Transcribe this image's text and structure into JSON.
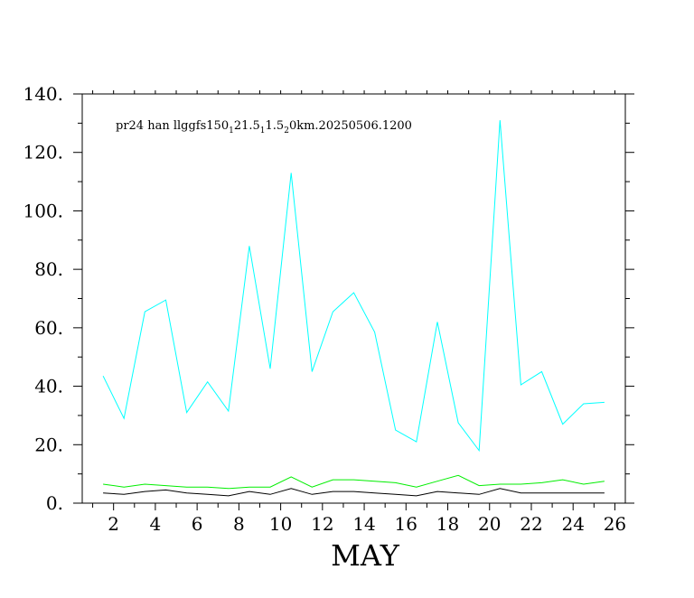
{
  "chart_data": {
    "type": "line",
    "title": "pr24  han  llggfs150",
    "title_parts": [
      {
        "text": "pr24  han  llggfs150",
        "sub": false
      },
      {
        "text": "1",
        "sub": true
      },
      {
        "text": "21.5",
        "sub": false
      },
      {
        "text": "1",
        "sub": true
      },
      {
        "text": "1.5",
        "sub": false
      },
      {
        "text": "2",
        "sub": true
      },
      {
        "text": "0km.20250506.1200",
        "sub": false
      }
    ],
    "xlabel": "MAY",
    "ylabel": "",
    "xlim": [
      0.5,
      26.5
    ],
    "ylim": [
      0,
      140
    ],
    "x_ticks": [
      2,
      4,
      6,
      8,
      10,
      12,
      14,
      16,
      18,
      20,
      22,
      24,
      26
    ],
    "x_tick_labels": [
      "2",
      "4",
      "6",
      "8",
      "10",
      "12",
      "14",
      "16",
      "18",
      "20",
      "22",
      "24",
      "26"
    ],
    "y_ticks": [
      0,
      20,
      40,
      60,
      80,
      100,
      120,
      140
    ],
    "y_tick_labels": [
      "0.",
      "20.",
      "40.",
      "60.",
      "80.",
      "100.",
      "120.",
      "140."
    ],
    "grid": false,
    "x": [
      1.5,
      2.5,
      3.5,
      4.5,
      5.5,
      6.5,
      7.5,
      8.5,
      9.5,
      10.5,
      11.5,
      12.5,
      13.5,
      14.5,
      15.5,
      16.5,
      17.5,
      18.5,
      19.5,
      20.5,
      21.5,
      22.5,
      23.5,
      24.5,
      25.5
    ],
    "series": [
      {
        "color": "#00ffff",
        "values": [
          43.5,
          29,
          65.5,
          69.5,
          31,
          41.5,
          31.5,
          88,
          46,
          113,
          45,
          65.5,
          72,
          58.5,
          25,
          21,
          62,
          27.5,
          18,
          131,
          40.5,
          45,
          27,
          34,
          34.5
        ]
      },
      {
        "color": "#00ee00",
        "values": [
          6.5,
          5.5,
          6.5,
          6,
          5.5,
          5.5,
          5,
          5.5,
          5.5,
          9,
          5.5,
          8,
          8,
          7.5,
          7,
          5.5,
          7.5,
          9.5,
          6,
          6.5,
          6.5,
          7,
          8,
          6.5,
          7.5
        ]
      },
      {
        "color": "#000000",
        "values": [
          3.5,
          3,
          4,
          4.5,
          3.5,
          3,
          2.5,
          4,
          3,
          5,
          3,
          4,
          4,
          3.5,
          3,
          2.5,
          4,
          3.5,
          3,
          5,
          3.5,
          3.5,
          3.5,
          3.5,
          3.5
        ]
      }
    ]
  }
}
